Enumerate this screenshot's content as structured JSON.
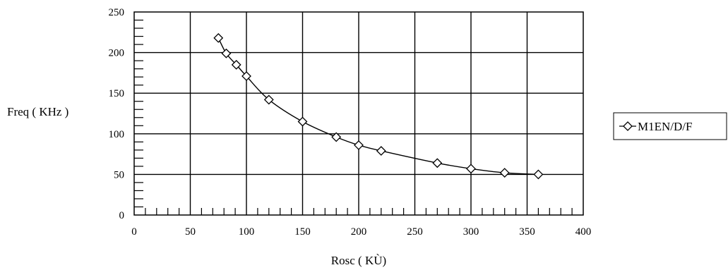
{
  "chart_data": {
    "type": "line",
    "title": "",
    "xlabel": "Rosc ( KÙ)",
    "ylabel": "Freq ( KHz )",
    "xlim": [
      0,
      400
    ],
    "ylim": [
      0,
      250
    ],
    "x_ticks": [
      "0",
      "50",
      "100",
      "150",
      "200",
      "250",
      "300",
      "350",
      "400"
    ],
    "y_ticks": [
      "0",
      "50",
      "100",
      "150",
      "200",
      "250"
    ],
    "grid": true,
    "legend_position": "right",
    "series": [
      {
        "name": "M1EN/D/F",
        "marker": "diamond",
        "color": "#000000",
        "x": [
          75,
          82,
          91,
          100,
          120,
          150,
          180,
          200,
          220,
          270,
          300,
          330,
          360
        ],
        "y": [
          218,
          199,
          185,
          171,
          142,
          115,
          96,
          86,
          79,
          64,
          57,
          52,
          50
        ]
      }
    ]
  }
}
